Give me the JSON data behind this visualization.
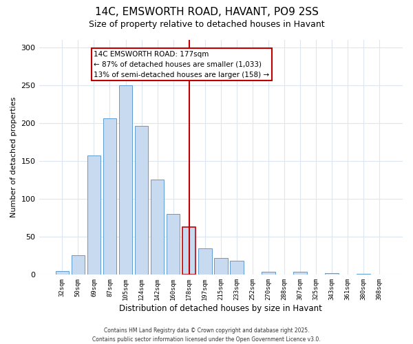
{
  "title": "14C, EMSWORTH ROAD, HAVANT, PO9 2SS",
  "subtitle": "Size of property relative to detached houses in Havant",
  "xlabel": "Distribution of detached houses by size in Havant",
  "ylabel": "Number of detached properties",
  "categories": [
    "32sqm",
    "50sqm",
    "69sqm",
    "87sqm",
    "105sqm",
    "124sqm",
    "142sqm",
    "160sqm",
    "178sqm",
    "197sqm",
    "215sqm",
    "233sqm",
    "252sqm",
    "270sqm",
    "288sqm",
    "307sqm",
    "325sqm",
    "343sqm",
    "361sqm",
    "380sqm",
    "398sqm"
  ],
  "values": [
    5,
    26,
    157,
    206,
    250,
    196,
    125,
    80,
    63,
    35,
    22,
    18,
    0,
    4,
    0,
    4,
    0,
    2,
    0,
    1,
    0
  ],
  "bar_color": "#c8daf0",
  "bar_edge_color": "#5b9bd5",
  "highlight_bar_index": 8,
  "highlight_bar_edge_color": "#c00000",
  "vline_color": "#c00000",
  "annotation_title": "14C EMSWORTH ROAD: 177sqm",
  "annotation_line1": "← 87% of detached houses are smaller (1,033)",
  "annotation_line2": "13% of semi-detached houses are larger (158) →",
  "annotation_box_color": "#ffffff",
  "annotation_box_edge_color": "#c00000",
  "ylim": [
    0,
    310
  ],
  "yticks": [
    0,
    50,
    100,
    150,
    200,
    250,
    300
  ],
  "footer_line1": "Contains HM Land Registry data © Crown copyright and database right 2025.",
  "footer_line2": "Contains public sector information licensed under the Open Government Licence v3.0.",
  "background_color": "#ffffff",
  "grid_color": "#dce6f1",
  "title_fontsize": 11,
  "subtitle_fontsize": 9,
  "ylabel_fontsize": 8,
  "xlabel_fontsize": 8.5,
  "annotation_fontsize": 7.5,
  "tick_fontsize": 6.5,
  "ytick_fontsize": 8,
  "footer_fontsize": 5.5
}
